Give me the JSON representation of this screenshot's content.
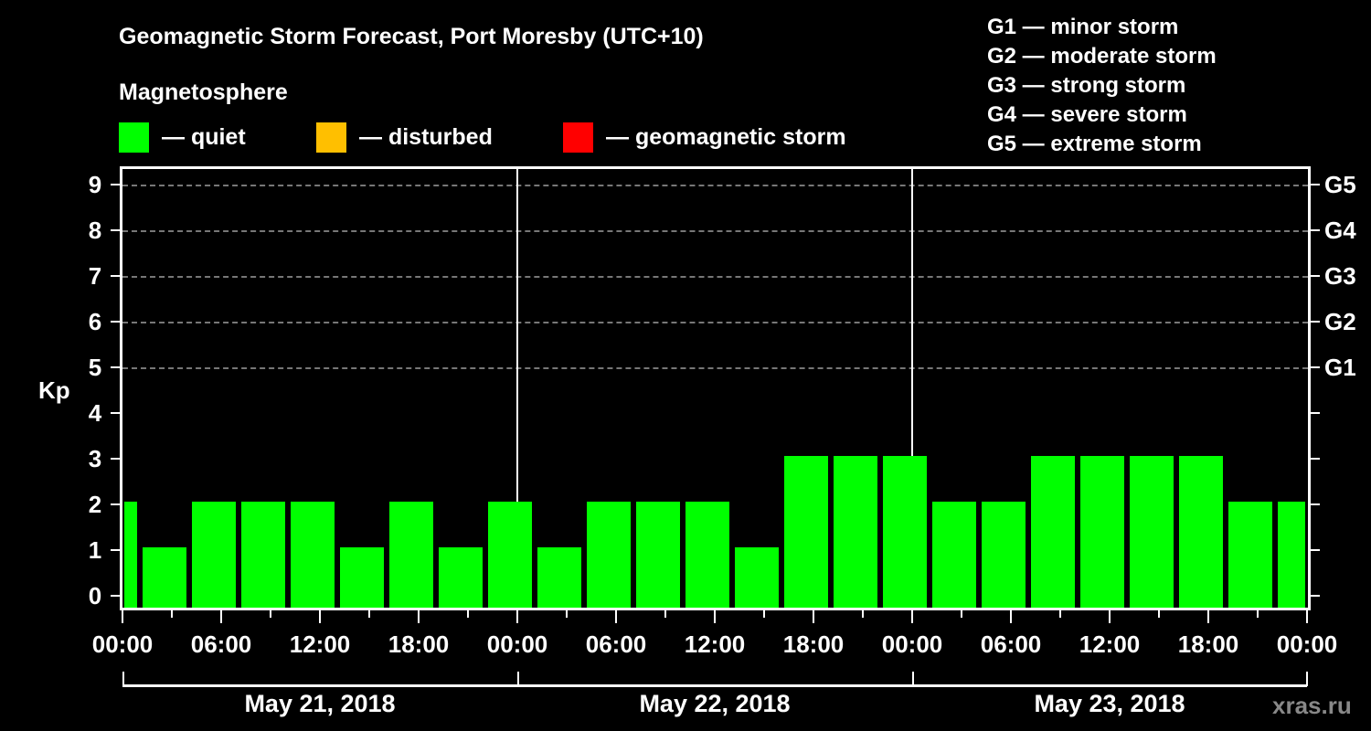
{
  "title": "Geomagnetic Storm Forecast, Port Moresby (UTC+10)",
  "subtitle": "Magnetosphere",
  "legend": [
    {
      "label": "— quiet",
      "color": "#00ff00"
    },
    {
      "label": "— disturbed",
      "color": "#ffbf00"
    },
    {
      "label": "— geomagnetic storm",
      "color": "#ff0000"
    }
  ],
  "storm_scale": [
    "G1 — minor storm",
    "G2 — moderate storm",
    "G3 — strong storm",
    "G4 — severe storm",
    "G5 — extreme storm"
  ],
  "y_axis_label": "Kp",
  "y_ticks": [
    "0",
    "1",
    "2",
    "3",
    "4",
    "5",
    "6",
    "7",
    "8",
    "9"
  ],
  "g_ticks": [
    "G1",
    "G2",
    "G3",
    "G4",
    "G5"
  ],
  "x_ticks": [
    "00:00",
    "06:00",
    "12:00",
    "18:00",
    "00:00",
    "06:00",
    "12:00",
    "18:00",
    "00:00",
    "06:00",
    "12:00",
    "18:00",
    "00:00"
  ],
  "days": [
    "May 21, 2018",
    "May 22, 2018",
    "May 23, 2018"
  ],
  "watermark": "xras.ru",
  "chart_data": {
    "type": "bar",
    "title": "Geomagnetic Storm Forecast, Port Moresby (UTC+10)",
    "xlabel": "",
    "ylabel": "Kp",
    "ylim": [
      0,
      9
    ],
    "grid": "dashed horizontal at Kp 5-9",
    "interval_hours": 3,
    "categories": [
      "May 21 00:00",
      "May 21 01:30",
      "May 21 04:30",
      "May 21 07:30",
      "May 21 10:30",
      "May 21 13:30",
      "May 21 16:30",
      "May 21 19:30",
      "May 21 22:30",
      "May 22 01:30",
      "May 22 04:30",
      "May 22 07:30",
      "May 22 10:30",
      "May 22 13:30",
      "May 22 16:30",
      "May 22 19:30",
      "May 22 22:30",
      "May 23 01:30",
      "May 23 04:30",
      "May 23 07:30",
      "May 23 10:30",
      "May 23 13:30",
      "May 23 16:30",
      "May 23 19:30",
      "May 23 22:30"
    ],
    "values": [
      2,
      1,
      2,
      2,
      2,
      1,
      2,
      1,
      2,
      1,
      2,
      2,
      2,
      1,
      3,
      3,
      3,
      2,
      2,
      3,
      3,
      3,
      3,
      2,
      2
    ],
    "series": [
      {
        "name": "quiet",
        "color": "#00ff00"
      }
    ],
    "right_axis": {
      "G1": 5,
      "G2": 6,
      "G3": 7,
      "G4": 8,
      "G5": 9
    }
  }
}
